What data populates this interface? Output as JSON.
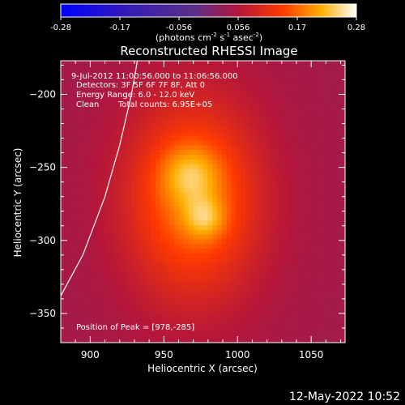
{
  "chart_data": {
    "type": "heatmap",
    "title": "Reconstructed RHESSI Image",
    "xlabel": "Heliocentric X (arcsec)",
    "ylabel": "Heliocentric Y (arcsec)",
    "xlim": [
      880,
      1073
    ],
    "ylim": [
      -370,
      -177
    ],
    "x_ticks": [
      900,
      950,
      1000,
      1050
    ],
    "y_ticks": [
      -200,
      -250,
      -300,
      -350
    ],
    "colorbar": {
      "range": [
        -0.28,
        0.28
      ],
      "ticks": [
        "-0.28",
        "-0.17",
        "-0.056",
        "0.056",
        "0.17",
        "0.28"
      ],
      "unit_base": "(photons cm",
      "unit_exp1": "-2",
      "unit_mid": " s",
      "unit_exp2": "-1",
      "unit_mid2": " asec",
      "unit_exp3": "-2",
      "unit_end": ")"
    },
    "annotations": {
      "time": "9-Jul-2012 11:00:56.000 to 11:06:56.000",
      "detectors": "Detectors: 3F 5F 6F 7F 8F, Att 0",
      "energy": "Energy Range: 6.0 - 12.0 keV",
      "clean": "Clean",
      "counts": "Total counts: 6.95E+05",
      "peak": "Position of Peak = [978,-285]"
    },
    "peak": [
      978,
      -285
    ],
    "background_level": 0.04,
    "sources": [
      {
        "x": 970,
        "y": -272,
        "sx": 32,
        "sy": 48,
        "amp": 0.14
      },
      {
        "x": 968,
        "y": -255,
        "sx": 14,
        "sy": 14,
        "amp": 0.07
      },
      {
        "x": 978,
        "y": -285,
        "sx": 10,
        "sy": 10,
        "amp": 0.07
      }
    ],
    "limb_curve": [
      [
        880,
        -338
      ],
      [
        895,
        -310
      ],
      [
        910,
        -270
      ],
      [
        920,
        -235
      ],
      [
        928,
        -200
      ],
      [
        932,
        -177
      ]
    ]
  },
  "footer": {
    "timestamp": "12-May-2022 10:52"
  }
}
